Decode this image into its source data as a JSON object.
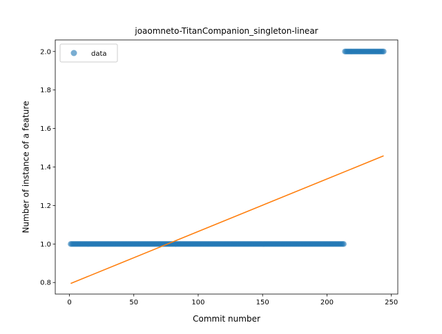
{
  "chart_data": {
    "type": "scatter",
    "title": "joaomneto-TitanCompanion_singleton-linear",
    "xlabel": "Commit number",
    "ylabel": "Number of instance of a feature",
    "xlim": [
      -11,
      255
    ],
    "ylim": [
      0.74,
      2.06
    ],
    "xticks": [
      0,
      50,
      100,
      150,
      200,
      250
    ],
    "yticks": [
      0.8,
      1.0,
      1.2,
      1.4,
      1.6,
      1.8,
      2.0
    ],
    "ytick_labels": [
      "0.8",
      "1.0",
      "1.2",
      "1.4",
      "1.6",
      "1.8",
      "2.0"
    ],
    "grid": false,
    "legend": {
      "location": "upper-left",
      "entries": [
        "data"
      ]
    },
    "series": [
      {
        "name": "data",
        "kind": "scatter",
        "segments": [
          {
            "x_start": 1,
            "x_end": 213,
            "y": 1.0
          },
          {
            "x_start": 214,
            "x_end": 244,
            "y": 2.0
          }
        ],
        "color": "#1f77b4",
        "alpha": 0.6
      },
      {
        "kind": "line",
        "x": [
          1,
          244
        ],
        "y": [
          0.795,
          1.458
        ],
        "color": "#ff7f0e"
      }
    ]
  }
}
